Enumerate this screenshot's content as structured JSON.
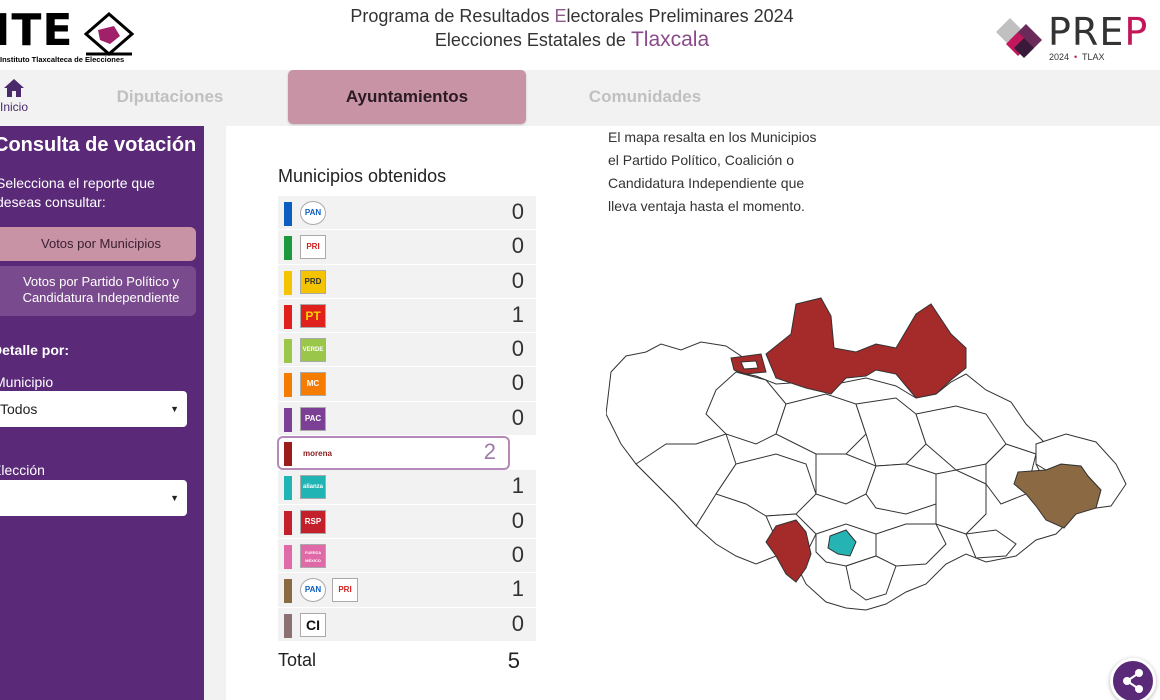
{
  "header": {
    "ite_letters": "ITE",
    "ite_sub": "Instituto Tlaxcalteca de Elecciones",
    "title_pre": "Programa de Resultados ",
    "title_hl": "E",
    "title_post": "lectorales Preliminares 2024",
    "subtitle_pre": "Elecciones Estatales de ",
    "subtitle_hl": "Tlaxcala",
    "prep_word_a": "PRE",
    "prep_word_b": "P",
    "prep_year": "2024",
    "prep_dot": "•",
    "prep_state": "TLAX"
  },
  "nav": {
    "home_label": "Inicio",
    "tabs": [
      {
        "label": "Diputaciones"
      },
      {
        "label": "Ayuntamientos"
      },
      {
        "label": "Comunidades"
      }
    ]
  },
  "sidebar": {
    "title": "Consulta de votación",
    "description": "Selecciona el reporte que deseas consultar:",
    "btn_municipios": "Votos por Municipios",
    "btn_partido": "Votos por Partido Político y Candidatura Independiente",
    "detalle_label": "Detalle por:",
    "municipio_label": "Municipio",
    "municipio_value": "Todos",
    "eleccion_label": "Elección",
    "eleccion_value": ""
  },
  "main": {
    "title": "Municipios obtenidos",
    "map_description": "El mapa resalta en los Municipios el Partido Político, Coalición o Candidatura Independiente que lleva ventaja hasta el momento.",
    "rows": [
      {
        "logo": "PAN",
        "value": "0",
        "color": "#0b5ec0"
      },
      {
        "logo": "PRI",
        "value": "0",
        "color": "#1a9a3a"
      },
      {
        "logo": "PRD",
        "value": "0",
        "color": "#f5c400"
      },
      {
        "logo": "PT",
        "value": "1",
        "color": "#e0201c"
      },
      {
        "logo": "VERDE",
        "value": "0",
        "color": "#9ac74a"
      },
      {
        "logo": "MC",
        "value": "0",
        "color": "#f57c00"
      },
      {
        "logo": "PAC",
        "value": "0",
        "color": "#7b3f96"
      },
      {
        "logo": "morena",
        "value": "2",
        "color": "#9b1c1c"
      },
      {
        "logo": "alianza",
        "value": "1",
        "color": "#20b4b4"
      },
      {
        "logo": "RSP",
        "value": "0",
        "color": "#c4202c"
      },
      {
        "logo": "FUERZA MÉXICO",
        "value": "0",
        "color": "#e06aa8"
      },
      {
        "logo": "PAN",
        "logo2": "PRI",
        "value": "1",
        "color": "#8b6a43"
      },
      {
        "logo": "CI",
        "value": "0",
        "color": "#8a7070"
      }
    ],
    "total_label": "Total",
    "total_value": "5"
  },
  "colors": {
    "sidebar": "#5a2a78",
    "active_tab": "#c993a6",
    "morena_fill": "#a52a2a",
    "coalition_fill": "#8b6a43",
    "alianza_fill": "#26b3b3"
  }
}
